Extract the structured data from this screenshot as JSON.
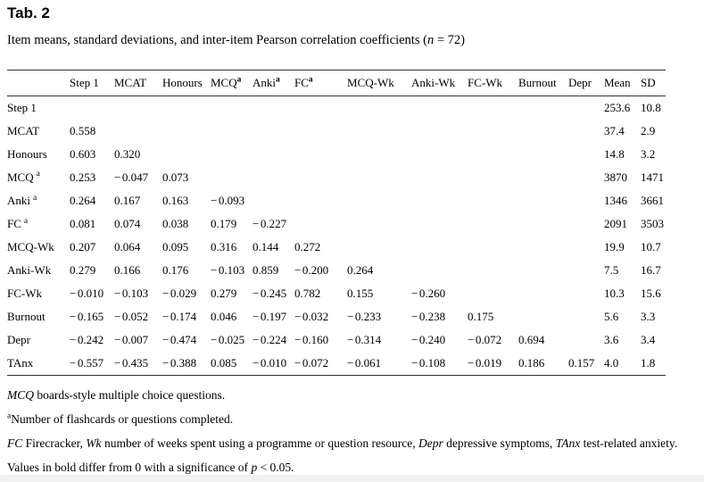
{
  "title": "Tab. 2",
  "subtitle": {
    "segments": [
      {
        "t": "Item means, standard deviations, and inter-item Pearson correlation coefficients (",
        "i": false
      },
      {
        "t": "n",
        "i": true
      },
      {
        "t": " = 72)",
        "i": false
      }
    ]
  },
  "table": {
    "corr_col_count": 11,
    "columns": [
      {
        "label": ""
      },
      {
        "label": "Step 1"
      },
      {
        "label": "MCAT"
      },
      {
        "label": "Honours"
      },
      {
        "label": "MCQ",
        "sup": "a"
      },
      {
        "label": "Anki",
        "sup": "a"
      },
      {
        "label": "FC",
        "sup": "a"
      },
      {
        "label": "MCQ-Wk"
      },
      {
        "label": "Anki-Wk"
      },
      {
        "label": "FC-Wk"
      },
      {
        "label": "Burnout"
      },
      {
        "label": "Depr"
      },
      {
        "label": "Mean"
      },
      {
        "label": "SD"
      }
    ],
    "rows": [
      {
        "label": "Step 1",
        "cells": [],
        "mean": "253.6",
        "sd": "10.8"
      },
      {
        "label": "MCAT",
        "cells": [
          {
            "v": "0.558",
            "b": true
          }
        ],
        "mean": "37.4",
        "sd": "2.9"
      },
      {
        "label": "Honours",
        "cells": [
          {
            "v": "0.603",
            "b": true
          },
          {
            "v": "0.320",
            "b": true
          }
        ],
        "mean": "14.8",
        "sd": "3.2"
      },
      {
        "label": "MCQ",
        "sup": "a",
        "cells": [
          {
            "v": "0.253",
            "b": true
          },
          {
            "v": "−0.047",
            "b": false
          },
          {
            "v": "0.073",
            "b": false
          }
        ],
        "mean": "3870",
        "sd": "1471"
      },
      {
        "label": "Anki",
        "sup": "a",
        "cells": [
          {
            "v": "0.264",
            "b": true
          },
          {
            "v": "0.167",
            "b": false
          },
          {
            "v": "0.163",
            "b": false
          },
          {
            "v": "−0.093",
            "b": false
          }
        ],
        "mean": "1346",
        "sd": "3661"
      },
      {
        "label": "FC",
        "sup": "a",
        "cells": [
          {
            "v": "0.081",
            "b": false
          },
          {
            "v": "0.074",
            "b": false
          },
          {
            "v": "0.038",
            "b": false
          },
          {
            "v": "0.179",
            "b": false
          },
          {
            "v": "−0.227",
            "b": false
          }
        ],
        "mean": "2091",
        "sd": "3503"
      },
      {
        "label": "MCQ-Wk",
        "cells": [
          {
            "v": "0.207",
            "b": false
          },
          {
            "v": "0.064",
            "b": false
          },
          {
            "v": "0.095",
            "b": false
          },
          {
            "v": "0.316",
            "b": true
          },
          {
            "v": "0.144",
            "b": false
          },
          {
            "v": "0.272",
            "b": true
          }
        ],
        "mean": "19.9",
        "sd": "10.7"
      },
      {
        "label": "Anki-Wk",
        "cells": [
          {
            "v": "0.279",
            "b": true
          },
          {
            "v": "0.166",
            "b": false
          },
          {
            "v": "0.176",
            "b": false
          },
          {
            "v": "−0.103",
            "b": false
          },
          {
            "v": "0.859",
            "b": true
          },
          {
            "v": "−0.200",
            "b": false
          },
          {
            "v": "0.264",
            "b": true
          }
        ],
        "mean": "7.5",
        "sd": "16.7"
      },
      {
        "label": "FC-Wk",
        "cells": [
          {
            "v": "−0.010",
            "b": false
          },
          {
            "v": "−0.103",
            "b": false
          },
          {
            "v": "−0.029",
            "b": false
          },
          {
            "v": "0.279",
            "b": true
          },
          {
            "v": "−0.245",
            "b": true
          },
          {
            "v": "0.782",
            "b": true
          },
          {
            "v": "0.155",
            "b": false
          },
          {
            "v": "−0.260",
            "b": true
          }
        ],
        "mean": "10.3",
        "sd": "15.6"
      },
      {
        "label": "Burnout",
        "cells": [
          {
            "v": "−0.165",
            "b": false
          },
          {
            "v": "−0.052",
            "b": false
          },
          {
            "v": "−0.174",
            "b": false
          },
          {
            "v": "0.046",
            "b": false
          },
          {
            "v": "−0.197",
            "b": false
          },
          {
            "v": "−0.032",
            "b": false
          },
          {
            "v": "−0.233",
            "b": true
          },
          {
            "v": "−0.238",
            "b": true
          },
          {
            "v": "0.175",
            "b": false
          }
        ],
        "mean": "5.6",
        "sd": "3.3"
      },
      {
        "label": "Depr",
        "cells": [
          {
            "v": "−0.242",
            "b": true
          },
          {
            "v": "−0.007",
            "b": false
          },
          {
            "v": "−0.474",
            "b": true
          },
          {
            "v": "−0.025",
            "b": false
          },
          {
            "v": "−0.224",
            "b": false
          },
          {
            "v": "−0.160",
            "b": false
          },
          {
            "v": "−0.314",
            "b": true
          },
          {
            "v": "−0.240",
            "b": true
          },
          {
            "v": "−0.072",
            "b": false
          },
          {
            "v": "0.694",
            "b": true
          }
        ],
        "mean": "3.6",
        "sd": "3.4"
      },
      {
        "label": "TAnx",
        "cells": [
          {
            "v": "−0.557",
            "b": true
          },
          {
            "v": "−0.435",
            "b": true
          },
          {
            "v": "−0.388",
            "b": true
          },
          {
            "v": "0.085",
            "b": false
          },
          {
            "v": "−0.010",
            "b": false
          },
          {
            "v": "−0.072",
            "b": false
          },
          {
            "v": "−0.061",
            "b": false
          },
          {
            "v": "−0.108",
            "b": false
          },
          {
            "v": "−0.019",
            "b": false
          },
          {
            "v": "0.186",
            "b": false
          },
          {
            "v": "0.157",
            "b": false
          }
        ],
        "mean": "4.0",
        "sd": "1.8"
      }
    ]
  },
  "footnotes": [
    {
      "segments": [
        {
          "t": "MCQ",
          "i": true
        },
        {
          "t": " boards-style multiple choice questions.",
          "i": false
        }
      ]
    },
    {
      "segments": [
        {
          "t": "a",
          "sup": true
        },
        {
          "t": "Number of flashcards or questions completed.",
          "i": false
        }
      ]
    },
    {
      "segments": [
        {
          "t": "FC",
          "i": true
        },
        {
          "t": " Firecracker, ",
          "i": false
        },
        {
          "t": "Wk",
          "i": true
        },
        {
          "t": " number of weeks spent using a programme or question resource, ",
          "i": false
        },
        {
          "t": "Depr",
          "i": true
        },
        {
          "t": " depressive symptoms, ",
          "i": false
        },
        {
          "t": "TAnx",
          "i": true
        },
        {
          "t": " test-related anxiety.",
          "i": false
        }
      ]
    },
    {
      "segments": [
        {
          "t": "Values in bold differ from 0 with a significance of ",
          "i": false
        },
        {
          "t": "p",
          "i": true
        },
        {
          "t": " < 0.05.",
          "i": false
        }
      ]
    }
  ]
}
